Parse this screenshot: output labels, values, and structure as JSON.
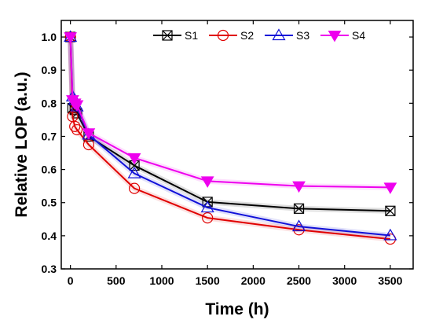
{
  "chart_data": {
    "type": "line",
    "title": "",
    "xlabel": "Time (h)",
    "ylabel": "Relative LOP (a.u.)",
    "xlim": [
      -100,
      3750
    ],
    "ylim": [
      0.3,
      1.05
    ],
    "x_ticks": [
      0,
      500,
      1000,
      1500,
      2000,
      2500,
      3000,
      3500
    ],
    "y_ticks": [
      0.3,
      0.4,
      0.5,
      0.6,
      0.7,
      0.8,
      0.9,
      1.0
    ],
    "x_tick_labels": [
      "0",
      "500",
      "1000",
      "1500",
      "2000",
      "2500",
      "3000",
      "3500"
    ],
    "y_tick_labels": [
      "0.3",
      "0.4",
      "0.5",
      "0.6",
      "0.7",
      "0.8",
      "0.9",
      "1.0"
    ],
    "grid": false,
    "legend": {
      "placement": "top-right",
      "orientation": "horizontal"
    },
    "x": [
      0,
      24,
      48,
      72,
      200,
      700,
      1500,
      2500,
      3500
    ],
    "series": [
      {
        "name": "S1",
        "color": "#000000",
        "marker": "square-cross",
        "values": [
          1.0,
          0.785,
          0.78,
          0.77,
          0.7,
          0.612,
          0.502,
          0.482,
          0.475
        ]
      },
      {
        "name": "S2",
        "color": "#e00000",
        "marker": "circle",
        "values": [
          1.0,
          0.76,
          0.73,
          0.72,
          0.675,
          0.543,
          0.454,
          0.418,
          0.39
        ]
      },
      {
        "name": "S3",
        "color": "#1010d8",
        "marker": "triangle-up",
        "values": [
          1.0,
          0.82,
          0.81,
          0.79,
          0.705,
          0.588,
          0.485,
          0.428,
          0.401
        ]
      },
      {
        "name": "S4",
        "color": "#ee00ee",
        "marker": "triangle-down-filled",
        "values": [
          1.0,
          0.81,
          0.8,
          0.795,
          0.71,
          0.635,
          0.565,
          0.55,
          0.546
        ]
      }
    ]
  }
}
